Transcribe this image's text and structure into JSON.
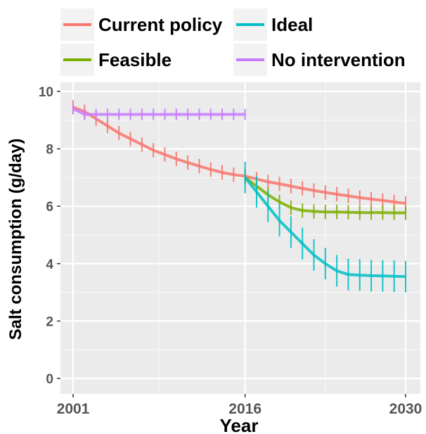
{
  "chart_data": {
    "type": "line",
    "xlabel": "Year",
    "ylabel": "Salt consumption (g/day)",
    "xlim": [
      2001,
      2030
    ],
    "ylim": [
      0,
      10
    ],
    "x_ticks": [
      2001,
      2016,
      2030
    ],
    "y_ticks": [
      0,
      2,
      4,
      6,
      8,
      10
    ],
    "grid": true,
    "legend_position": "top",
    "panel_background": "#ebebeb",
    "series": [
      {
        "name": "Current policy",
        "color": "#f8766d",
        "x": [
          2001,
          2002,
          2003,
          2004,
          2005,
          2006,
          2007,
          2008,
          2009,
          2010,
          2011,
          2012,
          2013,
          2014,
          2015,
          2016,
          2017,
          2018,
          2019,
          2020,
          2021,
          2022,
          2023,
          2024,
          2025,
          2026,
          2027,
          2028,
          2029,
          2030
        ],
        "y": [
          9.45,
          9.3,
          9.05,
          8.8,
          8.55,
          8.35,
          8.15,
          7.95,
          7.8,
          7.65,
          7.52,
          7.4,
          7.28,
          7.18,
          7.1,
          7.05,
          6.95,
          6.85,
          6.78,
          6.7,
          6.62,
          6.55,
          6.48,
          6.42,
          6.36,
          6.3,
          6.25,
          6.2,
          6.15,
          6.1
        ],
        "error": 0.25
      },
      {
        "name": "Feasible",
        "color": "#7cae00",
        "x": [
          2016,
          2017,
          2018,
          2019,
          2020,
          2021,
          2022,
          2023,
          2024,
          2025,
          2026,
          2027,
          2028,
          2029,
          2030
        ],
        "y": [
          7.0,
          6.7,
          6.4,
          6.15,
          5.95,
          5.85,
          5.82,
          5.8,
          5.8,
          5.79,
          5.78,
          5.78,
          5.78,
          5.77,
          5.77
        ],
        "error": 0.25
      },
      {
        "name": "Ideal",
        "color": "#00bfc4",
        "x": [
          2016,
          2017,
          2018,
          2019,
          2020,
          2021,
          2022,
          2023,
          2024,
          2025,
          2026,
          2027,
          2028,
          2029,
          2030
        ],
        "y": [
          7.0,
          6.5,
          6.0,
          5.5,
          5.1,
          4.7,
          4.3,
          4.0,
          3.75,
          3.62,
          3.6,
          3.58,
          3.57,
          3.56,
          3.55
        ],
        "error": 0.55
      },
      {
        "name": "No intervention",
        "color": "#c77cff",
        "x": [
          2001,
          2002,
          2003,
          2004,
          2005,
          2006,
          2007,
          2008,
          2009,
          2010,
          2011,
          2012,
          2013,
          2014,
          2015,
          2016
        ],
        "y": [
          9.4,
          9.2,
          9.2,
          9.2,
          9.2,
          9.2,
          9.2,
          9.2,
          9.2,
          9.2,
          9.2,
          9.2,
          9.2,
          9.2,
          9.2,
          9.2
        ],
        "error": 0.2
      }
    ]
  }
}
